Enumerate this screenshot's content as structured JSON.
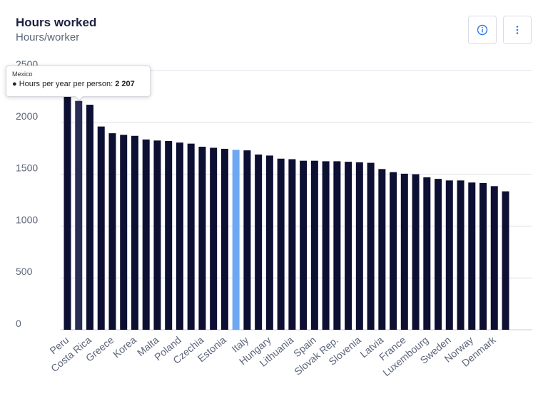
{
  "header": {
    "title": "Hours worked",
    "subtitle": "Hours/worker",
    "info_icon": "info-icon",
    "more_icon": "more-vertical-icon"
  },
  "tooltip": {
    "country": "Mexico",
    "label": "Hours per year per person:",
    "value": "2 207"
  },
  "colors": {
    "bar": "#0d0f33",
    "highlight_bar": "#6ea8f2",
    "hover_bar": "#2a2d55",
    "grid": "#dde1e8",
    "axis_text": "#5b6478",
    "accent": "#2f7be0"
  },
  "chart_data": {
    "type": "bar",
    "title": "Hours worked",
    "ylabel": "Hours/worker",
    "ylim": [
      0,
      2500
    ],
    "yticks": [
      0,
      500,
      1000,
      1500,
      2000,
      2500
    ],
    "grid": true,
    "categories": [
      "Peru",
      "Mexico",
      "Costa Rica",
      "",
      "Greece",
      "",
      "Korea",
      "",
      "Malta",
      "",
      "Poland",
      "",
      "Czechia",
      "",
      "Estonia",
      "",
      "Italy",
      "",
      "Hungary",
      "",
      "Lithuania",
      "",
      "Spain",
      "",
      "Slovak Rep.",
      "",
      "Slovenia",
      "",
      "Latvia",
      "",
      "France",
      "",
      "Luxembourg",
      "",
      "Sweden",
      "",
      "Norway",
      "",
      "Denmark",
      ""
    ],
    "values": [
      2270,
      2207,
      2170,
      1960,
      1895,
      1880,
      1870,
      1835,
      1825,
      1820,
      1805,
      1795,
      1765,
      1755,
      1745,
      1735,
      1730,
      1690,
      1680,
      1650,
      1645,
      1630,
      1630,
      1625,
      1625,
      1620,
      1615,
      1610,
      1550,
      1520,
      1505,
      1500,
      1470,
      1455,
      1440,
      1440,
      1420,
      1415,
      1385,
      1335
    ],
    "highlight_index": 15,
    "hover_index": 1,
    "tick_labels": [
      "Peru",
      "Costa Rica",
      "Greece",
      "Korea",
      "Malta",
      "Poland",
      "Czechia",
      "Estonia",
      "Italy",
      "Hungary",
      "Lithuania",
      "Spain",
      "Slovak Rep.",
      "Slovenia",
      "Latvia",
      "France",
      "Luxembourg",
      "Sweden",
      "Norway",
      "Denmark"
    ],
    "tick_label_indices": [
      0,
      2,
      4,
      6,
      8,
      10,
      12,
      14,
      16,
      18,
      20,
      22,
      24,
      26,
      28,
      30,
      32,
      34,
      36,
      38
    ]
  }
}
